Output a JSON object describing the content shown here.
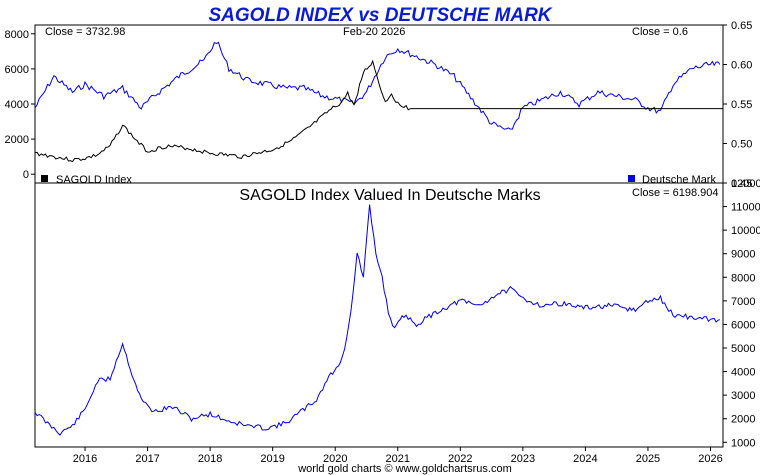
{
  "header": {
    "title": "SAGOLD INDEX vs DEUTSCHE MARK",
    "footer": "world gold charts © www.goldchartsrus.com"
  },
  "colors": {
    "title": "#0a1bd0",
    "blue_series": "#0000e6",
    "black_series": "#000000"
  },
  "chart_data": [
    {
      "type": "line",
      "labels": {
        "close_left": "Close = 3732.98",
        "date": "Feb-20  2026",
        "close_right": "Close = 0.6"
      },
      "legend": [
        {
          "name": "SAGOLD Index",
          "color": "#000000",
          "position": "bottom-left"
        },
        {
          "name": "Deutsche Mark",
          "color": "#0000e6",
          "position": "bottom-right"
        }
      ],
      "x_range": [
        2015.2,
        2026.2
      ],
      "left_axis": {
        "ylim": [
          -500,
          8500
        ],
        "ticks": [
          0,
          2000,
          4000,
          6000,
          8000
        ]
      },
      "right_axis": {
        "ylim": [
          0.45,
          0.65
        ],
        "ticks": [
          0.45,
          0.5,
          0.55,
          0.6,
          0.65
        ]
      },
      "series": [
        {
          "name": "SAGOLD Index",
          "axis": "left",
          "x": [
            2015.2,
            2015.5,
            2015.8,
            2016.0,
            2016.2,
            2016.4,
            2016.6,
            2016.8,
            2017.0,
            2017.3,
            2017.6,
            2018.0,
            2018.5,
            2019.0,
            2019.3,
            2019.6,
            2019.9,
            2020.1,
            2020.2,
            2020.3,
            2020.45,
            2020.6,
            2020.7,
            2020.8,
            2020.9,
            2021.0,
            2021.1,
            2021.2
          ],
          "values": [
            1200,
            1000,
            800,
            900,
            1100,
            1600,
            2800,
            2000,
            1300,
            1600,
            1500,
            1200,
            1000,
            1400,
            1900,
            2700,
            3600,
            4100,
            4600,
            3900,
            5800,
            6400,
            5200,
            4100,
            4600,
            4000,
            3900,
            3733
          ]
        },
        {
          "name": "Deutsche Mark",
          "axis": "right",
          "x": [
            2015.2,
            2015.5,
            2015.8,
            2016.0,
            2016.3,
            2016.6,
            2016.9,
            2017.1,
            2017.5,
            2017.9,
            2018.1,
            2018.3,
            2018.6,
            2018.9,
            2019.2,
            2019.5,
            2019.8,
            2020.1,
            2020.3,
            2020.5,
            2020.8,
            2021.0,
            2021.3,
            2021.6,
            2021.9,
            2022.2,
            2022.5,
            2022.8,
            2023.0,
            2023.3,
            2023.6,
            2023.9,
            2024.2,
            2024.5,
            2024.8,
            2025.0,
            2025.2,
            2025.4,
            2025.7,
            2026.0,
            2026.15
          ],
          "values": [
            0.545,
            0.585,
            0.565,
            0.575,
            0.56,
            0.57,
            0.545,
            0.56,
            0.585,
            0.605,
            0.63,
            0.595,
            0.58,
            0.575,
            0.57,
            0.57,
            0.56,
            0.555,
            0.55,
            0.565,
            0.61,
            0.62,
            0.61,
            0.6,
            0.585,
            0.555,
            0.525,
            0.515,
            0.545,
            0.555,
            0.565,
            0.55,
            0.565,
            0.56,
            0.555,
            0.545,
            0.54,
            0.575,
            0.595,
            0.6,
            0.6
          ]
        }
      ],
      "flat_line": {
        "x": [
          2021.2,
          2026.2
        ],
        "value": 3733
      }
    },
    {
      "type": "line",
      "title": "SAGOLD Index Valued In Deutsche Marks",
      "labels": {
        "close": "Close = 6198.904"
      },
      "x_range": [
        2015.2,
        2026.2
      ],
      "x_ticks": [
        2016,
        2017,
        2018,
        2019,
        2020,
        2021,
        2022,
        2023,
        2024,
        2025,
        2026
      ],
      "ylim": [
        800,
        12000
      ],
      "y_ticks": [
        1000,
        2000,
        3000,
        4000,
        5000,
        6000,
        7000,
        8000,
        9000,
        10000,
        11000,
        12000
      ],
      "series": [
        {
          "name": "SAGOLD Index Valued In Deutsche Marks",
          "x": [
            2015.2,
            2015.4,
            2015.6,
            2015.8,
            2016.0,
            2016.2,
            2016.4,
            2016.6,
            2016.75,
            2016.9,
            2017.1,
            2017.4,
            2017.7,
            2018.0,
            2018.3,
            2018.6,
            2018.9,
            2019.2,
            2019.45,
            2019.7,
            2019.9,
            2020.05,
            2020.15,
            2020.25,
            2020.35,
            2020.45,
            2020.55,
            2020.65,
            2020.75,
            2020.85,
            2020.95,
            2021.1,
            2021.3,
            2021.6,
            2022.0,
            2022.3,
            2022.6,
            2022.8,
            2023.0,
            2023.3,
            2023.6,
            2024.0,
            2024.4,
            2024.8,
            2025.0,
            2025.2,
            2025.4,
            2025.7,
            2026.0,
            2026.15
          ],
          "values": [
            2300,
            1800,
            1400,
            1700,
            2400,
            3600,
            3700,
            5200,
            3900,
            2800,
            2300,
            2500,
            2000,
            2200,
            1900,
            1700,
            1600,
            1800,
            2300,
            2800,
            3800,
            4200,
            5000,
            6500,
            9000,
            8000,
            11000,
            9000,
            8000,
            6500,
            5800,
            6400,
            6000,
            6500,
            7000,
            6800,
            7300,
            7500,
            7100,
            6800,
            6900,
            6700,
            6800,
            6600,
            7000,
            7100,
            6400,
            6300,
            6200,
            6199
          ]
        }
      ]
    }
  ]
}
